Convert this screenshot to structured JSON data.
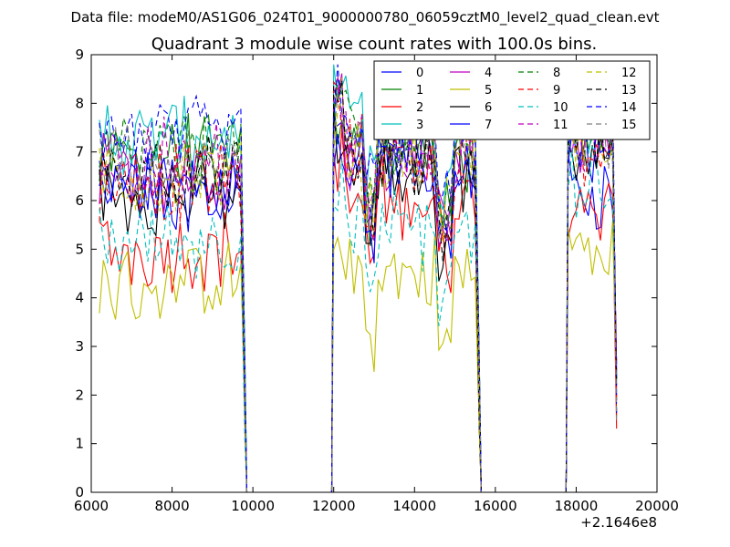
{
  "chart_data": {
    "type": "line",
    "suptitle": "Data file: modeM0/AS1G06_024T01_9000000780_06059cztM0_level2_quad_clean.evt",
    "title": "Quadrant 3 module wise count rates with 100.0s bins.",
    "xlabel": "",
    "ylabel": "",
    "offset_label": "+2.1646e8",
    "xlim": [
      6000,
      20000
    ],
    "ylim": [
      0,
      9
    ],
    "xticks": [
      6000,
      8000,
      10000,
      12000,
      14000,
      16000,
      18000,
      20000
    ],
    "xtick_labels": [
      "6000",
      "8000",
      "10000",
      "12000",
      "14000",
      "16000",
      "18000",
      "20000"
    ],
    "yticks": [
      0,
      1,
      2,
      3,
      4,
      5,
      6,
      7,
      8,
      9
    ],
    "ytick_labels": [
      "0",
      "1",
      "2",
      "3",
      "4",
      "5",
      "6",
      "7",
      "8",
      "9"
    ],
    "legend_position": "top-right",
    "segments": [
      {
        "start": 6200,
        "end": 9800,
        "step": 100
      },
      {
        "start": 12000,
        "end": 15600,
        "step": 100
      },
      {
        "start": 17800,
        "end": 19000,
        "step": 100
      }
    ],
    "series": [
      {
        "name": "0",
        "color": "#0000ff",
        "dash": "solid",
        "levels": [
          6.2,
          6.7,
          6.2
        ]
      },
      {
        "name": "1",
        "color": "#008000",
        "dash": "solid",
        "levels": [
          6.9,
          7.0,
          7.4
        ]
      },
      {
        "name": "2",
        "color": "#ff0000",
        "dash": "solid",
        "levels": [
          5.0,
          6.0,
          6.0
        ]
      },
      {
        "name": "3",
        "color": "#00bfbf",
        "dash": "solid",
        "levels": [
          7.3,
          7.6,
          7.8
        ]
      },
      {
        "name": "4",
        "color": "#bf00bf",
        "dash": "solid",
        "levels": [
          6.6,
          7.2,
          7.3
        ]
      },
      {
        "name": "5",
        "color": "#bfbf00",
        "dash": "solid",
        "levels": [
          4.3,
          4.5,
          5.0
        ]
      },
      {
        "name": "6",
        "color": "#000000",
        "dash": "solid",
        "levels": [
          6.1,
          6.6,
          7.0
        ]
      },
      {
        "name": "7",
        "color": "#0000ff",
        "dash": "solid",
        "levels": [
          6.3,
          6.7,
          7.2
        ]
      },
      {
        "name": "8",
        "color": "#008000",
        "dash": "dashed",
        "levels": [
          7.0,
          7.4,
          7.6
        ]
      },
      {
        "name": "9",
        "color": "#ff0000",
        "dash": "dashed",
        "levels": [
          6.4,
          6.9,
          7.0
        ]
      },
      {
        "name": "10",
        "color": "#00bfbf",
        "dash": "dashed",
        "levels": [
          5.2,
          5.4,
          6.3
        ]
      },
      {
        "name": "11",
        "color": "#bf00bf",
        "dash": "dashed",
        "levels": [
          6.8,
          7.1,
          7.4
        ]
      },
      {
        "name": "12",
        "color": "#bfbf00",
        "dash": "dashed",
        "levels": [
          6.5,
          7.0,
          7.2
        ]
      },
      {
        "name": "13",
        "color": "#000000",
        "dash": "dashed",
        "levels": [
          6.6,
          6.9,
          7.2
        ]
      },
      {
        "name": "14",
        "color": "#0000ff",
        "dash": "dashed",
        "levels": [
          7.3,
          7.6,
          7.8
        ]
      },
      {
        "name": "15",
        "color": "#808080",
        "dash": "dashed",
        "levels": [
          6.7,
          7.1,
          7.3
        ]
      }
    ]
  }
}
